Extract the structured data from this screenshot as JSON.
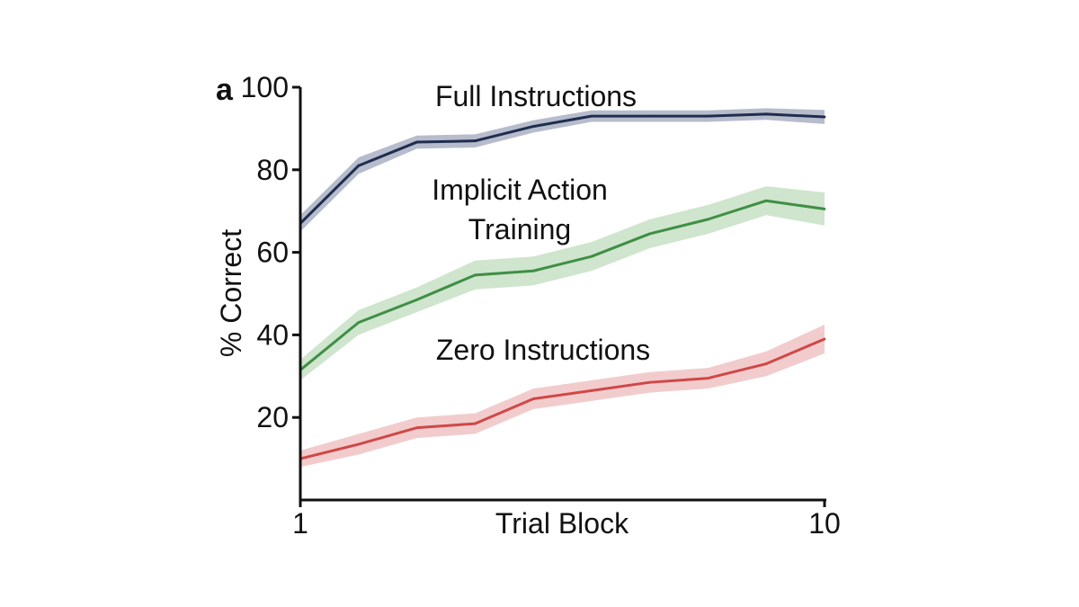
{
  "chart_data": {
    "type": "line",
    "panel_label": "a",
    "xlabel": "Trial Block",
    "ylabel": "% Correct",
    "xlim": [
      1,
      10
    ],
    "ylim": [
      0,
      100
    ],
    "x_tick_labels": [
      "1",
      "10"
    ],
    "y_ticks": [
      20,
      40,
      60,
      80,
      100
    ],
    "y_tick_labels": [
      "20",
      "40",
      "60",
      "80",
      "100"
    ],
    "grid": false,
    "legend": "none (inline labels)",
    "x": [
      1,
      2,
      3,
      4,
      5,
      6,
      7,
      8,
      9,
      10
    ],
    "series": [
      {
        "name": "Full Instructions",
        "label_lines": [
          "Full Instructions"
        ],
        "color": "#1f2d4f",
        "band_color": "#b7bccc",
        "values": [
          67,
          81,
          86.7,
          87,
          90.5,
          93,
          93,
          93,
          93.5,
          92.8
        ],
        "band": [
          2.0,
          2.0,
          1.6,
          1.6,
          1.5,
          1.4,
          1.4,
          1.4,
          1.4,
          1.7
        ]
      },
      {
        "name": "Implicit Action Training",
        "label_lines": [
          "Implicit Action",
          "Training"
        ],
        "color": "#3f8f45",
        "band_color": "#cfe5cd",
        "values": [
          31.5,
          43,
          48.5,
          54.5,
          55.5,
          59,
          64.5,
          68,
          72.5,
          70.5
        ],
        "band": [
          2.5,
          3.0,
          3.0,
          3.5,
          3.5,
          3.5,
          3.5,
          3.5,
          3.5,
          4.0
        ]
      },
      {
        "name": "Zero Instructions",
        "label_lines": [
          "Zero Instructions"
        ],
        "color": "#d04848",
        "band_color": "#f2cccd",
        "values": [
          10,
          13.5,
          17.5,
          18.5,
          24.5,
          26.5,
          28.5,
          29.5,
          33,
          39
        ],
        "band": [
          2.0,
          2.5,
          2.5,
          2.5,
          2.5,
          2.5,
          2.5,
          2.5,
          3.0,
          3.5
        ]
      }
    ]
  }
}
